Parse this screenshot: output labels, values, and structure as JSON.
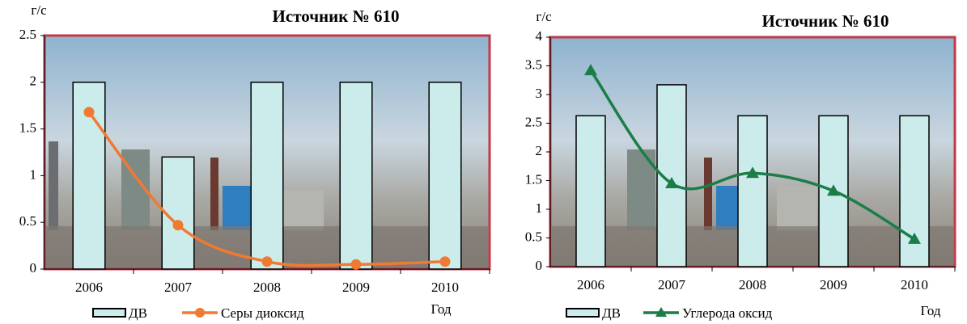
{
  "chart_data": [
    {
      "type": "bar",
      "title": "Источник № 610",
      "y_label": "г/с",
      "x_label": "Год",
      "categories": [
        "2006",
        "2007",
        "2008",
        "2009",
        "2010"
      ],
      "series": [
        {
          "name": "ДВ",
          "type": "bar",
          "color": "#ccecec",
          "values": [
            2,
            1.2,
            2,
            2,
            2
          ]
        },
        {
          "name": "Серы диоксид",
          "type": "line",
          "color": "#f07a32",
          "marker": "circle",
          "values": [
            1.68,
            0.47,
            0.08,
            0.05,
            0.08
          ]
        }
      ],
      "ylim": [
        0,
        2.5
      ],
      "yticks": [
        0,
        0.5,
        1,
        1.5,
        2,
        2.5
      ]
    },
    {
      "type": "bar",
      "title": "Источник № 610",
      "y_label": "г/с",
      "x_label": "Год",
      "categories": [
        "2006",
        "2007",
        "2008",
        "2009",
        "2010"
      ],
      "series": [
        {
          "name": "ДВ",
          "type": "bar",
          "color": "#ccecec",
          "values": [
            2.63,
            3.17,
            2.63,
            2.63,
            2.63
          ]
        },
        {
          "name": "Углерода оксид",
          "type": "line",
          "color": "#1b7d47",
          "marker": "triangle",
          "values": [
            3.42,
            1.45,
            1.63,
            1.32,
            0.48
          ]
        }
      ],
      "ylim": [
        0,
        4
      ],
      "yticks": [
        0,
        0.5,
        1,
        1.5,
        2,
        2.5,
        3,
        3.5,
        4
      ]
    }
  ]
}
